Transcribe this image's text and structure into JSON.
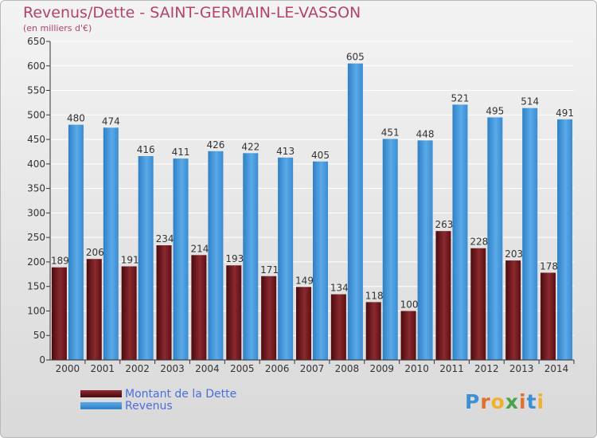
{
  "title": "Revenus/Dette - SAINT-GERMAIN-LE-VASSON",
  "subtitle": "(en milliers d'€)",
  "logo": "Proxiti",
  "colors": {
    "dette": "#6b1317",
    "revenus": "#3d8fd6",
    "title": "#b3436b",
    "legend_text": "#4a6de0"
  },
  "chart_data": {
    "type": "bar",
    "title": "Revenus/Dette - SAINT-GERMAIN-LE-VASSON",
    "ylabel": "(en milliers d'€)",
    "xlabel": "",
    "categories": [
      "2000",
      "2001",
      "2002",
      "2003",
      "2004",
      "2005",
      "2006",
      "2007",
      "2008",
      "2009",
      "2010",
      "2011",
      "2012",
      "2013",
      "2014"
    ],
    "series": [
      {
        "name": "Montant de la Dette",
        "values": [
          189,
          206,
          191,
          234,
          214,
          193,
          171,
          149,
          134,
          118,
          100,
          263,
          228,
          203,
          178
        ]
      },
      {
        "name": "Revenus",
        "values": [
          480,
          474,
          416,
          411,
          426,
          422,
          413,
          405,
          605,
          451,
          448,
          521,
          495,
          514,
          491
        ]
      }
    ],
    "ylim": [
      0,
      650
    ],
    "yticks": [
      0,
      50,
      100,
      150,
      200,
      250,
      300,
      350,
      400,
      450,
      500,
      550,
      600,
      650
    ],
    "grid": true,
    "legend_position": "bottom-left"
  }
}
